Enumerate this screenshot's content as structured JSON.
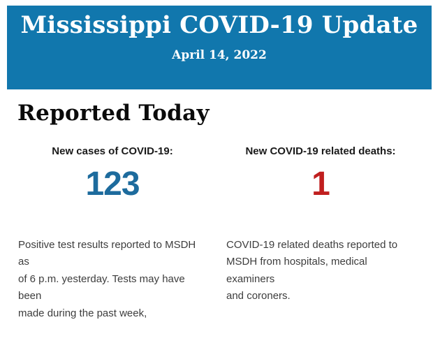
{
  "colors": {
    "banner_bg": "#1177ad",
    "banner_text": "#ffffff",
    "heading_text": "#0b0b0b",
    "label_text": "#1a1a1a",
    "cases_number": "#1d6b9d",
    "deaths_number": "#c01f1f",
    "body_text": "#3d3d3d",
    "page_bg": "#ffffff"
  },
  "banner": {
    "title": "Mississippi COVID-19 Update",
    "date": "April 14, 2022"
  },
  "main": {
    "heading": "Reported Today",
    "stats": [
      {
        "label": "New cases of COVID-19:",
        "value": "123",
        "description": "Positive test results reported to MSDH as\nof 6 p.m. yesterday. Tests may have been\nmade during the past week,"
      },
      {
        "label": "New COVID-19 related deaths:",
        "value": "1",
        "description": "COVID-19 related deaths reported to\nMSDH from hospitals, medical examiners\nand coroners."
      }
    ]
  }
}
